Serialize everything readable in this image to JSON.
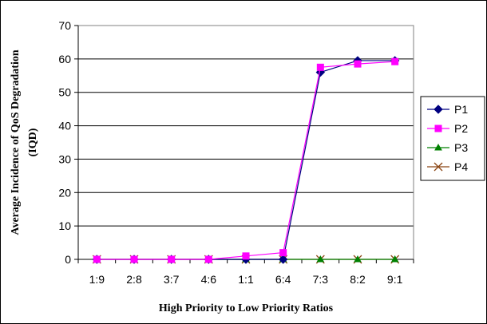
{
  "chart_data": {
    "type": "line",
    "title": "",
    "xlabel": "High Priority to Low Priority Ratios",
    "ylabel_line1": "Average Incidence of QoS Degradation",
    "ylabel_line2": "(IQD)",
    "categories": [
      "1:9",
      "2:8",
      "3:7",
      "4:6",
      "1:1",
      "6:4",
      "7:3",
      "8:2",
      "9:1"
    ],
    "ylim": [
      0,
      70
    ],
    "yticks": [
      0,
      10,
      20,
      30,
      40,
      50,
      60,
      70
    ],
    "grid": "horizontal",
    "legend_position": "right",
    "series": [
      {
        "name": "P1",
        "color": "#000080",
        "marker": "diamond",
        "values": [
          0,
          0,
          0,
          0,
          0,
          0,
          56,
          59.5,
          59.5
        ]
      },
      {
        "name": "P2",
        "color": "#ff00ff",
        "marker": "square",
        "values": [
          0,
          0,
          0,
          0,
          1,
          2,
          57.5,
          58.5,
          59.2
        ]
      },
      {
        "name": "P3",
        "color": "#008000",
        "marker": "triangle",
        "values": [
          0,
          0,
          0,
          0,
          0,
          0,
          0,
          0,
          0
        ]
      },
      {
        "name": "P4",
        "color": "#8b4513",
        "marker": "x",
        "values": [
          0,
          0,
          0,
          0,
          0,
          0,
          0,
          0,
          0
        ]
      }
    ]
  }
}
